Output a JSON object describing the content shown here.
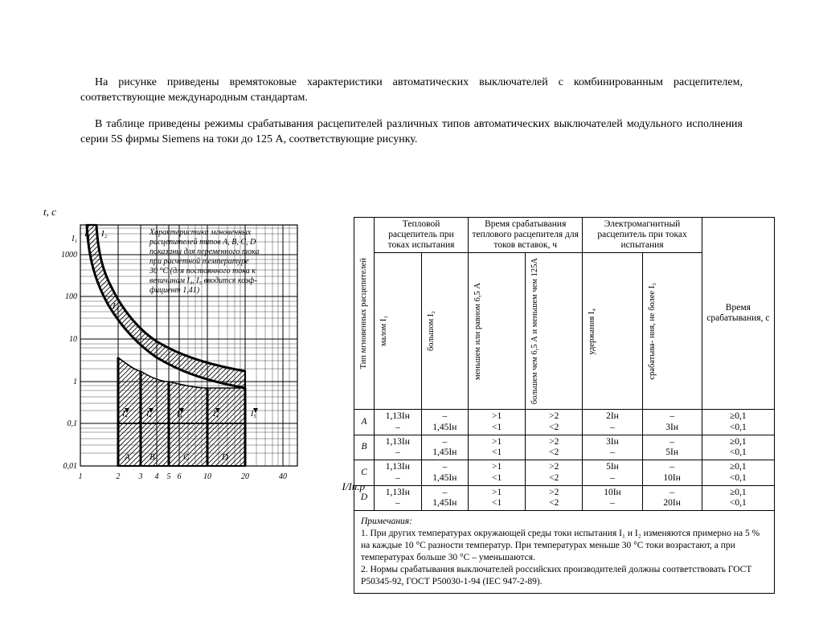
{
  "paragraphs": {
    "p1": "На рисунке приведены времятоковые характеристики автоматических выключателей с комбинированным расцепителем, соответствующие международным стандартам.",
    "p2": "В таблице приведены режимы срабатывания расцепителей различных типов автоматических выключателей модульного исполнения серии 5S фирмы Siemens на токи до 125 А, соответствующие рисунку."
  },
  "chart": {
    "type": "time-current-curve",
    "background_color": "#ffffff",
    "stroke_color": "#000000",
    "grid_color": "#000000",
    "grid_minor_color": "#555555",
    "y_axis_label": "t, с",
    "x_axis_label": "I/Iн.р",
    "y_scale": "log",
    "y_range": [
      0.01,
      5000
    ],
    "y_ticks": [
      "0,01",
      "0,1",
      "1",
      "10",
      "100",
      "1000"
    ],
    "x_scale": "linear_then_log_feel",
    "x_range": [
      1,
      40
    ],
    "x_ticks": [
      "1",
      "2",
      "3",
      "4",
      "5",
      "6",
      "10",
      "20",
      "40"
    ],
    "marker_labels_top": [
      "I₁",
      "I₂"
    ],
    "marker_labels_mid": [
      "I₃"
    ],
    "marker_labels_bottom_row1": [
      "I₄",
      "I₄",
      "I₄",
      "I₄",
      "I₅"
    ],
    "region_labels": [
      "A",
      "B",
      "C",
      "D"
    ],
    "annotation_lines": [
      "Характеристики мгновенных",
      "расцепителей типов A, B, C, D",
      "показаны для переменного тока",
      "при расчетной температуре",
      "30 °C (для постоянного тока к",
      "величинам I₄, I₅ вводится коэф-",
      "фициент 1,41)"
    ],
    "annotation_fontsize": 10,
    "axis_fontsize": 10,
    "magnetic_bands": {
      "A": [
        2,
        3
      ],
      "B": [
        3,
        5
      ],
      "C": [
        5,
        10
      ],
      "D": [
        10,
        20
      ]
    },
    "thermal_curve_I1_I2": [
      {
        "x": 1.13,
        "t": 5000
      },
      {
        "x": 1.3,
        "t": 1200
      },
      {
        "x": 1.45,
        "t": 400
      },
      {
        "x": 2,
        "t": 80
      },
      {
        "x": 3,
        "t": 20
      },
      {
        "x": 5,
        "t": 6
      },
      {
        "x": 8,
        "t": 2.2
      }
    ]
  },
  "table": {
    "header_groups": {
      "g1": "Тепловой расцепитель при токах испытания",
      "g2": "Время срабатывания теплового расцепителя для токов вставок, ч",
      "g3": "Электромагнитный расцепитель при токах испытания",
      "g4": "Время срабатывания, с"
    },
    "row_header": "Тип мгновенных расцепителей",
    "sub_headers": {
      "c1": "малом I₁",
      "c2": "большом I₂",
      "c3": "меньшем или равном 6,5 А",
      "c4": "большем чем 6,5 А и меньшем чем 125А",
      "c5": "удержания I₄",
      "c6": "срабатыва-\nния, не более I₅"
    },
    "rows": [
      {
        "type": "A",
        "c1a": "1,13Iн",
        "c1b": "–",
        "c2a": "–",
        "c2b": "1,45Iн",
        "c3a": ">1",
        "c3b": "<1",
        "c4a": ">2",
        "c4b": "<2",
        "c5a": "2Iн",
        "c5b": "–",
        "c6a": "–",
        "c6b": "3Iн",
        "c7a": "≥0,1",
        "c7b": "<0,1"
      },
      {
        "type": "B",
        "c1a": "1,13Iн",
        "c1b": "–",
        "c2a": "–",
        "c2b": "1,45Iн",
        "c3a": ">1",
        "c3b": "<1",
        "c4a": ">2",
        "c4b": "<2",
        "c5a": "3Iн",
        "c5b": "–",
        "c6a": "–",
        "c6b": "5Iн",
        "c7a": "≥0,1",
        "c7b": "<0,1"
      },
      {
        "type": "C",
        "c1a": "1,13Iн",
        "c1b": "–",
        "c2a": "–",
        "c2b": "1,45Iн",
        "c3a": ">1",
        "c3b": "<1",
        "c4a": ">2",
        "c4b": "<2",
        "c5a": "5Iн",
        "c5b": "–",
        "c6a": "–",
        "c6b": "10Iн",
        "c7a": "≥0,1",
        "c7b": "<0,1"
      },
      {
        "type": "D",
        "c1a": "1,13Iн",
        "c1b": "–",
        "c2a": "–",
        "c2b": "1,45Iн",
        "c3a": ">1",
        "c3b": "<1",
        "c4a": ">2",
        "c4b": "<2",
        "c5a": "10Iн",
        "c5b": "–",
        "c6a": "–",
        "c6b": "20Iн",
        "c7a": "≥0,1",
        "c7b": "<0,1"
      }
    ]
  },
  "notes": {
    "title": "Примечания:",
    "n1": "1. При других температурах окружающей среды токи испытания I₁ и I₂ изменяются примерно на 5 % на каждые 10 °C разности температур. При температурах меньше 30 °C токи возрастают, а при температурах больше 30 °C – уменьшаются.",
    "n2": "2. Нормы срабатывания выключателей российских производителей должны соответствовать ГОСТ Р50345-92, ГОСТ Р50030-1-94 (IEC 947-2-89)."
  },
  "colors": {
    "text": "#000000",
    "bg": "#ffffff",
    "grid": "#000000"
  }
}
